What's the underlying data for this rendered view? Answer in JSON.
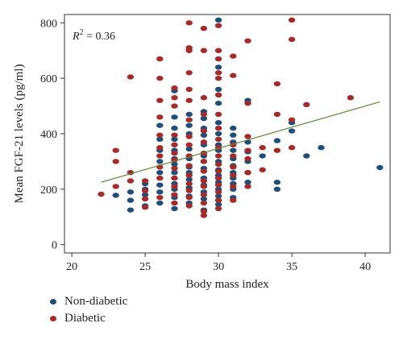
{
  "chart_data": {
    "type": "scatter",
    "xlabel": "Body mass index",
    "ylabel": "Mean FGF-21 levels (pg/ml)",
    "annotation": {
      "prefix": "R",
      "sup": "2",
      "suffix": " = 0.36"
    },
    "xlim": [
      19.5,
      41.7
    ],
    "ylim": [
      -30,
      830
    ],
    "xticks": [
      20,
      25,
      30,
      35,
      40
    ],
    "yticks": [
      0,
      200,
      400,
      600,
      800
    ],
    "grid": false,
    "legend_position": "bottom-left",
    "trendline": {
      "x": [
        22,
        41
      ],
      "y": [
        225,
        515
      ],
      "color": "#5a8a3a"
    },
    "series": [
      {
        "name": "Non-diabetic",
        "color": "#1f4e79",
        "points": [
          [
            23,
            178
          ],
          [
            24,
            125
          ],
          [
            24,
            160
          ],
          [
            24,
            190
          ],
          [
            25,
            140
          ],
          [
            25,
            180
          ],
          [
            25,
            200
          ],
          [
            25,
            220
          ],
          [
            26,
            150
          ],
          [
            26,
            190
          ],
          [
            26,
            215
          ],
          [
            26,
            260
          ],
          [
            26,
            300
          ],
          [
            26,
            340
          ],
          [
            26,
            380
          ],
          [
            26,
            430
          ],
          [
            27,
            130
          ],
          [
            27,
            170
          ],
          [
            27,
            200
          ],
          [
            27,
            220
          ],
          [
            27,
            260
          ],
          [
            27,
            290
          ],
          [
            27,
            310
          ],
          [
            27,
            340
          ],
          [
            27,
            380
          ],
          [
            27,
            420
          ],
          [
            27,
            460
          ],
          [
            27,
            555
          ],
          [
            28,
            150
          ],
          [
            28,
            175
          ],
          [
            28,
            205
          ],
          [
            28,
            235
          ],
          [
            28,
            260
          ],
          [
            28,
            280
          ],
          [
            28,
            310
          ],
          [
            28,
            345
          ],
          [
            28,
            400
          ],
          [
            28,
            430
          ],
          [
            28,
            470
          ],
          [
            29,
            125
          ],
          [
            29,
            165
          ],
          [
            29,
            190
          ],
          [
            29,
            215
          ],
          [
            29,
            240
          ],
          [
            29,
            275
          ],
          [
            29,
            300
          ],
          [
            29,
            320
          ],
          [
            29,
            360
          ],
          [
            29,
            395
          ],
          [
            29,
            420
          ],
          [
            29,
            455
          ],
          [
            29,
            480
          ],
          [
            30,
            145
          ],
          [
            30,
            175
          ],
          [
            30,
            200
          ],
          [
            30,
            225
          ],
          [
            30,
            250
          ],
          [
            30,
            270
          ],
          [
            30,
            300
          ],
          [
            30,
            340
          ],
          [
            30,
            360
          ],
          [
            30,
            400
          ],
          [
            30,
            440
          ],
          [
            30,
            510
          ],
          [
            30,
            560
          ],
          [
            30,
            640
          ],
          [
            30,
            810
          ],
          [
            31,
            170
          ],
          [
            31,
            200
          ],
          [
            31,
            220
          ],
          [
            31,
            240
          ],
          [
            31,
            260
          ],
          [
            31,
            285
          ],
          [
            31,
            310
          ],
          [
            31,
            340
          ],
          [
            31,
            370
          ],
          [
            31,
            395
          ],
          [
            31,
            420
          ],
          [
            32,
            225
          ],
          [
            32,
            260
          ],
          [
            32,
            300
          ],
          [
            32,
            335
          ],
          [
            32,
            370
          ],
          [
            32,
            520
          ],
          [
            33,
            320
          ],
          [
            34,
            200
          ],
          [
            34,
            225
          ],
          [
            34,
            375
          ],
          [
            35,
            410
          ],
          [
            35,
            440
          ],
          [
            36,
            320
          ],
          [
            37,
            350
          ],
          [
            41,
            278
          ]
        ]
      },
      {
        "name": "Diabetic",
        "color": "#a52a2a",
        "points": [
          [
            22,
            182
          ],
          [
            23,
            210
          ],
          [
            23,
            300
          ],
          [
            23,
            340
          ],
          [
            24,
            230
          ],
          [
            24,
            260
          ],
          [
            24,
            605
          ],
          [
            25,
            135
          ],
          [
            25,
            165
          ],
          [
            25,
            195
          ],
          [
            25,
            230
          ],
          [
            26,
            170
          ],
          [
            26,
            240
          ],
          [
            26,
            280
          ],
          [
            26,
            320
          ],
          [
            26,
            350
          ],
          [
            26,
            395
          ],
          [
            26,
            460
          ],
          [
            26,
            520
          ],
          [
            26,
            600
          ],
          [
            26,
            670
          ],
          [
            27,
            150
          ],
          [
            27,
            180
          ],
          [
            27,
            210
          ],
          [
            27,
            240
          ],
          [
            27,
            275
          ],
          [
            27,
            305
          ],
          [
            27,
            330
          ],
          [
            27,
            360
          ],
          [
            27,
            395
          ],
          [
            27,
            500
          ],
          [
            27,
            530
          ],
          [
            27,
            565
          ],
          [
            28,
            140
          ],
          [
            28,
            170
          ],
          [
            28,
            195
          ],
          [
            28,
            220
          ],
          [
            28,
            250
          ],
          [
            28,
            285
          ],
          [
            28,
            320
          ],
          [
            28,
            360
          ],
          [
            28,
            390
          ],
          [
            28,
            450
          ],
          [
            28,
            520
          ],
          [
            28,
            560
          ],
          [
            28,
            620
          ],
          [
            28,
            700
          ],
          [
            28,
            710
          ],
          [
            28,
            800
          ],
          [
            29,
            105
          ],
          [
            29,
            120
          ],
          [
            29,
            150
          ],
          [
            29,
            180
          ],
          [
            29,
            210
          ],
          [
            29,
            230
          ],
          [
            29,
            265
          ],
          [
            29,
            300
          ],
          [
            29,
            330
          ],
          [
            29,
            370
          ],
          [
            29,
            410
          ],
          [
            29,
            470
          ],
          [
            29,
            530
          ],
          [
            29,
            700
          ],
          [
            29,
            780
          ],
          [
            30,
            130
          ],
          [
            30,
            160
          ],
          [
            30,
            190
          ],
          [
            30,
            215
          ],
          [
            30,
            240
          ],
          [
            30,
            265
          ],
          [
            30,
            290
          ],
          [
            30,
            320
          ],
          [
            30,
            350
          ],
          [
            30,
            380
          ],
          [
            30,
            420
          ],
          [
            30,
            470
          ],
          [
            30,
            540
          ],
          [
            30,
            600
          ],
          [
            30,
            620
          ],
          [
            30,
            670
          ],
          [
            30,
            700
          ],
          [
            30,
            790
          ],
          [
            31,
            160
          ],
          [
            31,
            210
          ],
          [
            31,
            250
          ],
          [
            31,
            280
          ],
          [
            31,
            320
          ],
          [
            31,
            360
          ],
          [
            31,
            610
          ],
          [
            31,
            680
          ],
          [
            32,
            210
          ],
          [
            32,
            260
          ],
          [
            32,
            310
          ],
          [
            32,
            340
          ],
          [
            32,
            390
          ],
          [
            32,
            510
          ],
          [
            32,
            735
          ],
          [
            33,
            270
          ],
          [
            33,
            350
          ],
          [
            34,
            340
          ],
          [
            34,
            470
          ],
          [
            34,
            580
          ],
          [
            35,
            350
          ],
          [
            35,
            450
          ],
          [
            35,
            740
          ],
          [
            35,
            810
          ],
          [
            36,
            505
          ],
          [
            39,
            530
          ]
        ]
      }
    ]
  }
}
